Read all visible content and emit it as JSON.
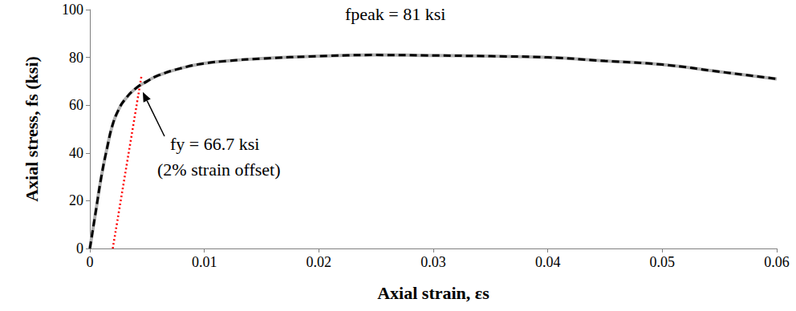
{
  "chart_data": {
    "type": "line",
    "x_label": "Axial strain, εs",
    "y_label": "Axial stress, fs (ksi)",
    "xlim": [
      0,
      0.06
    ],
    "xticks": [
      0,
      0.01,
      0.02,
      0.03,
      0.04,
      0.05,
      0.06
    ],
    "ylim": [
      0,
      100
    ],
    "yticks": [
      0,
      20,
      40,
      60,
      80,
      100
    ],
    "grid": false,
    "series": [
      {
        "color": "#b0b0b0",
        "line_style": "solid",
        "x": [
          0,
          0.0005,
          0.001,
          0.0015,
          0.002,
          0.0025,
          0.003,
          0.004,
          0.005,
          0.006,
          0.008,
          0.01,
          0.012,
          0.015,
          0.02,
          0.025,
          0.03,
          0.035,
          0.04,
          0.045,
          0.05,
          0.055,
          0.06
        ],
        "values": [
          0,
          15,
          30,
          42,
          52,
          58,
          62,
          67,
          70,
          72.5,
          75.5,
          77.5,
          78.5,
          79.5,
          80.5,
          81,
          80.8,
          80.5,
          80,
          78.5,
          77,
          74,
          71
        ]
      },
      {
        "color": "#000000",
        "line_style": "dashed",
        "x": [
          0,
          0.0005,
          0.001,
          0.0015,
          0.002,
          0.0025,
          0.003,
          0.004,
          0.005,
          0.006,
          0.008,
          0.01,
          0.012,
          0.015,
          0.02,
          0.025,
          0.03,
          0.035,
          0.04,
          0.045,
          0.05,
          0.055,
          0.06
        ],
        "values": [
          0,
          15,
          30,
          42,
          52,
          58,
          62,
          67,
          70,
          72.5,
          75.5,
          77.5,
          78.5,
          79.5,
          80.5,
          81,
          80.8,
          80.5,
          80,
          78.5,
          77,
          74,
          71
        ]
      },
      {
        "color": "#ff0000",
        "line_style": "dotted",
        "x": [
          0.002,
          0.0045
        ],
        "values": [
          0,
          72
        ]
      }
    ],
    "annotations": [
      {
        "text": "fpeak = 81 ksi"
      },
      {
        "text": "fy = 66.7 ksi",
        "x": 0.0045,
        "y": 66.7
      },
      {
        "text": "(2% strain offset)"
      }
    ]
  }
}
